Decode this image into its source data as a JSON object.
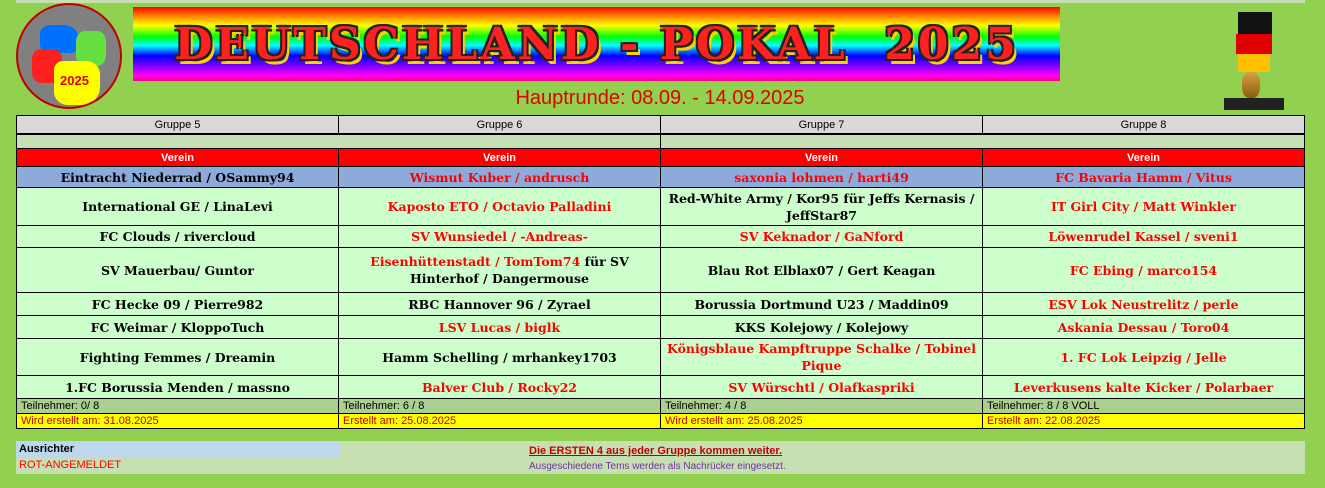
{
  "title": "DEUTSCHLAND - POKAL  2025",
  "logo_year": "2025",
  "round": "Hauptrunde: 08.09. - 14.09.2025",
  "column_header": "Verein",
  "groups": [
    {
      "name": "Gruppe 5",
      "participants": "Teilnehmer:   0/ 8",
      "created": "Wird erstellt am: 31.08.2025",
      "teams": [
        [
          {
            "t": "Eintracht Niederrad / OSammy94",
            "red": false
          }
        ],
        [
          {
            "t": "International GE / LinaLevi",
            "red": false
          }
        ],
        [
          {
            "t": "FC Clouds / rivercloud",
            "red": false
          }
        ],
        [
          {
            "t": "SV Mauerbau/ Guntor",
            "red": false
          }
        ],
        [
          {
            "t": "FC Hecke 09 / Pierre982",
            "red": false
          }
        ],
        [
          {
            "t": "FC Weimar / KloppoTuch",
            "red": false
          }
        ],
        [
          {
            "t": "Fighting Femmes / Dreamin",
            "red": false
          }
        ],
        [
          {
            "t": "1.FC Borussia Menden / massno",
            "red": false
          }
        ]
      ]
    },
    {
      "name": "Gruppe 6",
      "participants": "Teilnehmer:   6 / 8",
      "created": "Erstellt am: 25.08.2025",
      "teams": [
        [
          {
            "t": "Wismut Kuber / andrusch",
            "red": true
          }
        ],
        [
          {
            "t": "Kaposto ETO / Octavio Palladini",
            "red": true
          }
        ],
        [
          {
            "t": "SV Wunsiedel /  -Andreas-",
            "red": true
          }
        ],
        [
          {
            "t": "Eisenhüttenstadt / TomTom74",
            "red": true
          },
          {
            "t": " für SV Hinterhof / Dangermouse",
            "red": false
          }
        ],
        [
          {
            "t": "RBC Hannover 96 / Zyrael",
            "red": false
          }
        ],
        [
          {
            "t": "LSV Lucas / biglk",
            "red": true
          }
        ],
        [
          {
            "t": "Hamm Schelling / mrhankey1703",
            "red": false
          }
        ],
        [
          {
            "t": "Balver Club / Rocky22",
            "red": true
          }
        ]
      ]
    },
    {
      "name": "Gruppe 7",
      "participants": "Teilnehmer:   4 / 8",
      "created": "Wird erstellt am: 25.08.2025",
      "teams": [
        [
          {
            "t": "saxonia lohmen / harti49",
            "red": true
          }
        ],
        [
          {
            "t": "Red-White Army / Kor95 für Jeffs Kernasis / JeffStar87",
            "red": false
          }
        ],
        [
          {
            "t": "SV Keknador / GaNford",
            "red": true
          }
        ],
        [
          {
            "t": "Blau Rot Elblax07 / Gert Keagan",
            "red": false
          }
        ],
        [
          {
            "t": "Borussia Dortmund U23 / Maddin09",
            "red": false
          }
        ],
        [
          {
            "t": "KKS Kolejowy / Kolejowy",
            "red": false
          }
        ],
        [
          {
            "t": "Königsblaue Kampftruppe Schalke / Tobinel Pique",
            "red": true
          }
        ],
        [
          {
            "t": "SV Würschtl / Olafkaspriki",
            "red": true
          }
        ]
      ]
    },
    {
      "name": "Gruppe 8",
      "participants": "Teilnehmer:   8 / 8 VOLL",
      "created": "Erstellt am: 22.08.2025",
      "teams": [
        [
          {
            "t": "FC Bavaria Hamm / Vitus",
            "red": true
          }
        ],
        [
          {
            "t": "IT Girl City / Matt Winkler",
            "red": true
          }
        ],
        [
          {
            "t": "Löwenrudel Kassel / sveni1",
            "red": true
          }
        ],
        [
          {
            "t": "FC Ebing / marco154",
            "red": true
          }
        ],
        [
          {
            "t": "ESV Lok Neustrelitz / perle",
            "red": true
          }
        ],
        [
          {
            "t": "Askania Dessau / Toro04",
            "red": true
          }
        ],
        [
          {
            "t": "1. FC Lok Leipzig / Jelle",
            "red": true
          }
        ],
        [
          {
            "t": "Leverkusens kalte Kicker / Polarbaer",
            "red": true
          }
        ]
      ]
    }
  ],
  "footer": {
    "organizer_label": "Ausrichter",
    "legend_registered": "ROT-ANGEMELDET",
    "note_advance": "Die ERSTEN 4 aus jeder Gruppe kommen weiter.",
    "note_replacement": "Ausgeschiedene Tems werden als Nachrücker eingesetzt."
  },
  "colors": {
    "background": "#92d050",
    "header_red": "#ff0000",
    "team_cell": "#ccffcc",
    "highlight_row": "#8eaadb",
    "created_row": "#ffff00"
  }
}
